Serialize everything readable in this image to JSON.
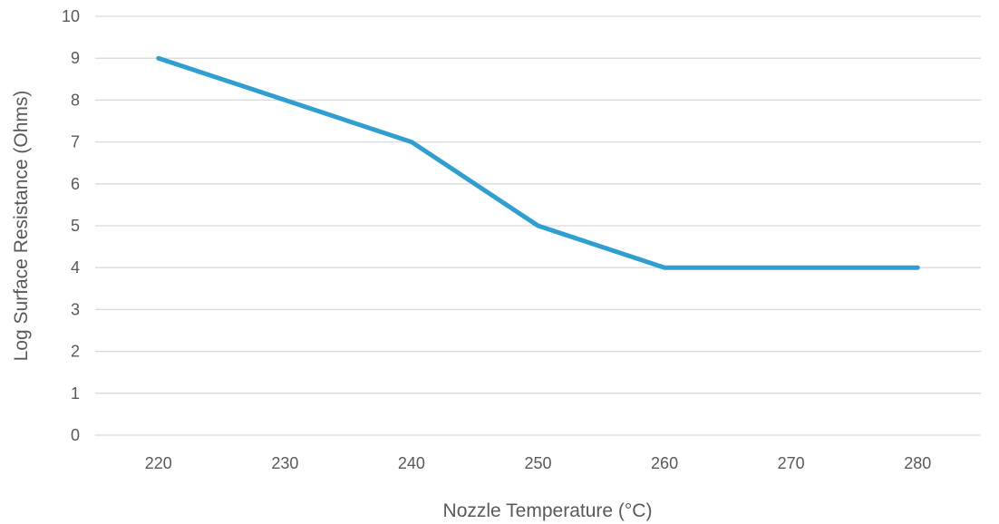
{
  "chart_data": {
    "type": "line",
    "title": "",
    "xlabel": "Nozzle Temperature (°C)",
    "ylabel": "Log Surface Resistance (Ohms)",
    "categories": [
      "220",
      "230",
      "240",
      "250",
      "260",
      "270",
      "280"
    ],
    "series": [
      {
        "values": [
          9,
          8,
          7,
          5,
          4,
          4,
          4
        ],
        "color": "#2e9fd0"
      }
    ],
    "ylim": [
      0,
      10
    ],
    "yticks": [
      0,
      1,
      2,
      3,
      4,
      5,
      6,
      7,
      8,
      9,
      10
    ],
    "grid": "horizontal",
    "legend": "none",
    "gridColor": "#d9d9d9",
    "textColor": "#595959"
  }
}
